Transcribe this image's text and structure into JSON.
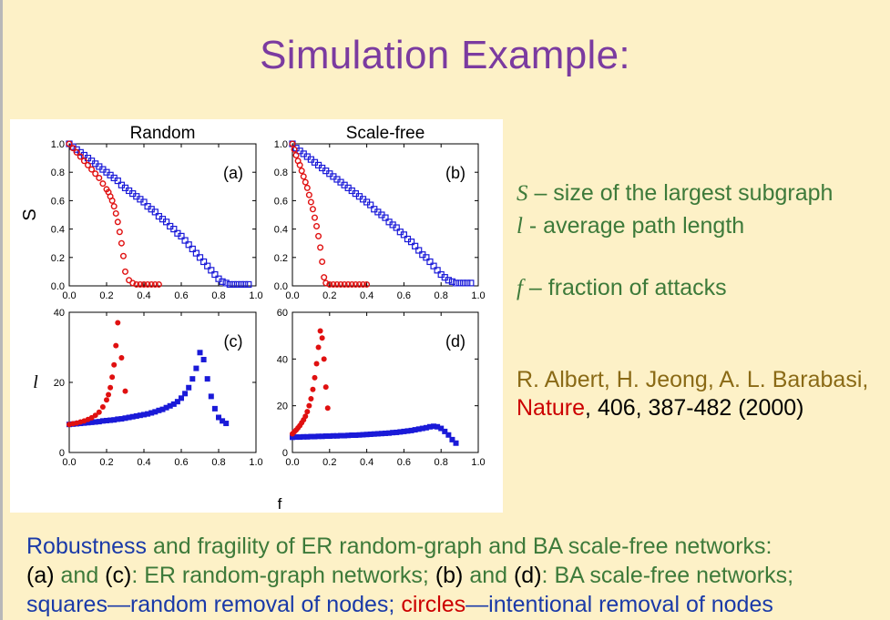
{
  "slide": {
    "title": "Simulation Example:"
  },
  "legend": [
    {
      "symbol": "S",
      "text": " – size of the largest subgraph"
    },
    {
      "symbol": "l",
      "text": " -  average path length"
    },
    {
      "symbol": "f",
      "text": " – fraction of attacks"
    }
  ],
  "reference": {
    "authors": "R. Albert, H. Jeong, A. L. Barabasi,",
    "journal": "Nature",
    "details": ", 406, 387-482 (2000)"
  },
  "caption": {
    "line1": {
      "a": "Robustness",
      "b": " and fragility of ER random-graph and BA scale-free networks:"
    },
    "line2": {
      "a": "(a)",
      "b": " and ",
      "c": "(c)",
      "d": ": ER random-graph networks; ",
      "e": "(b)",
      "f": " and ",
      "g": "(d)",
      "h": ": BA scale-free networks;"
    },
    "line3": {
      "a": "squares—random removal of nodes; ",
      "b": "circles",
      "c": "—intentional removal of nodes"
    }
  },
  "colors": {
    "squares": "#1a1ad8",
    "circles": "#e01010"
  },
  "chart_data": [
    {
      "type": "scatter",
      "panel": "(a)",
      "column_title": "Random",
      "ylabel": "S",
      "xlim": [
        0,
        1.0
      ],
      "ylim": [
        0,
        1.0
      ],
      "xticks": [
        "0.0",
        "0.2",
        "0.4",
        "0.6",
        "0.8",
        "1.0"
      ],
      "yticks": [
        "0.0",
        "0.2",
        "0.4",
        "0.6",
        "0.8",
        "1.0"
      ],
      "series": [
        {
          "marker": "open-square",
          "x": [
            0,
            0.02,
            0.04,
            0.06,
            0.08,
            0.1,
            0.12,
            0.14,
            0.16,
            0.18,
            0.2,
            0.22,
            0.24,
            0.26,
            0.28,
            0.3,
            0.32,
            0.34,
            0.36,
            0.38,
            0.4,
            0.42,
            0.44,
            0.46,
            0.48,
            0.5,
            0.52,
            0.54,
            0.56,
            0.58,
            0.6,
            0.62,
            0.64,
            0.66,
            0.68,
            0.7,
            0.72,
            0.74,
            0.76,
            0.78,
            0.8,
            0.82,
            0.84,
            0.86,
            0.88,
            0.9,
            0.92,
            0.94,
            0.96
          ],
          "y": [
            1.0,
            0.98,
            0.96,
            0.94,
            0.92,
            0.9,
            0.88,
            0.86,
            0.84,
            0.82,
            0.8,
            0.78,
            0.76,
            0.74,
            0.71,
            0.69,
            0.67,
            0.65,
            0.63,
            0.61,
            0.59,
            0.56,
            0.54,
            0.52,
            0.49,
            0.47,
            0.45,
            0.42,
            0.4,
            0.37,
            0.35,
            0.32,
            0.29,
            0.26,
            0.23,
            0.2,
            0.17,
            0.14,
            0.11,
            0.08,
            0.05,
            0.03,
            0.02,
            0.01,
            0.01,
            0.01,
            0.01,
            0.01,
            0.01
          ]
        },
        {
          "marker": "open-circle",
          "x": [
            0,
            0.02,
            0.04,
            0.06,
            0.08,
            0.1,
            0.12,
            0.14,
            0.16,
            0.18,
            0.2,
            0.21,
            0.22,
            0.23,
            0.24,
            0.25,
            0.26,
            0.27,
            0.28,
            0.29,
            0.3,
            0.32,
            0.34,
            0.36,
            0.38,
            0.4,
            0.42,
            0.44,
            0.46,
            0.48
          ],
          "y": [
            1.0,
            0.97,
            0.94,
            0.91,
            0.88,
            0.85,
            0.82,
            0.79,
            0.76,
            0.72,
            0.68,
            0.66,
            0.63,
            0.6,
            0.56,
            0.51,
            0.45,
            0.38,
            0.3,
            0.21,
            0.1,
            0.04,
            0.02,
            0.01,
            0.01,
            0.01,
            0.01,
            0.01,
            0.01,
            0.01
          ]
        }
      ]
    },
    {
      "type": "scatter",
      "panel": "(b)",
      "column_title": "Scale-free",
      "xlim": [
        0,
        1.0
      ],
      "ylim": [
        0,
        1.0
      ],
      "xticks": [
        "0.0",
        "0.2",
        "0.4",
        "0.6",
        "0.8",
        "1.0"
      ],
      "yticks": [
        "0.0",
        "0.2",
        "0.4",
        "0.6",
        "0.8",
        "1.0"
      ],
      "series": [
        {
          "marker": "open-square",
          "x": [
            0,
            0.02,
            0.04,
            0.06,
            0.08,
            0.1,
            0.12,
            0.14,
            0.16,
            0.18,
            0.2,
            0.22,
            0.24,
            0.26,
            0.28,
            0.3,
            0.32,
            0.34,
            0.36,
            0.38,
            0.4,
            0.42,
            0.44,
            0.46,
            0.48,
            0.5,
            0.52,
            0.54,
            0.56,
            0.58,
            0.6,
            0.62,
            0.64,
            0.66,
            0.68,
            0.7,
            0.72,
            0.74,
            0.76,
            0.78,
            0.8,
            0.82,
            0.84,
            0.86,
            0.88,
            0.9,
            0.92,
            0.94,
            0.96
          ],
          "y": [
            1.0,
            0.97,
            0.95,
            0.93,
            0.91,
            0.89,
            0.87,
            0.85,
            0.83,
            0.81,
            0.79,
            0.77,
            0.75,
            0.73,
            0.71,
            0.69,
            0.67,
            0.65,
            0.63,
            0.61,
            0.59,
            0.57,
            0.54,
            0.52,
            0.5,
            0.48,
            0.45,
            0.43,
            0.41,
            0.38,
            0.36,
            0.33,
            0.31,
            0.28,
            0.25,
            0.22,
            0.2,
            0.17,
            0.14,
            0.11,
            0.08,
            0.06,
            0.04,
            0.03,
            0.02,
            0.02,
            0.02,
            0.02,
            0.02
          ]
        },
        {
          "marker": "open-circle",
          "x": [
            0,
            0.01,
            0.02,
            0.03,
            0.04,
            0.05,
            0.06,
            0.07,
            0.08,
            0.09,
            0.1,
            0.11,
            0.12,
            0.13,
            0.14,
            0.15,
            0.16,
            0.17,
            0.18,
            0.2,
            0.22,
            0.24,
            0.26,
            0.28,
            0.3,
            0.32,
            0.34,
            0.36,
            0.38,
            0.4
          ],
          "y": [
            1.0,
            0.96,
            0.92,
            0.88,
            0.85,
            0.81,
            0.77,
            0.73,
            0.69,
            0.64,
            0.59,
            0.54,
            0.48,
            0.42,
            0.35,
            0.27,
            0.17,
            0.06,
            0.02,
            0.01,
            0.01,
            0.01,
            0.01,
            0.01,
            0.01,
            0.01,
            0.01,
            0.01,
            0.01,
            0.01
          ]
        }
      ]
    },
    {
      "type": "scatter",
      "panel": "(c)",
      "ylabel": "l",
      "xlim": [
        0,
        1.0
      ],
      "ylim": [
        0,
        40
      ],
      "xticks": [
        "0.0",
        "0.2",
        "0.4",
        "0.6",
        "0.8",
        "1.0"
      ],
      "yticks": [
        "0",
        "20",
        "40"
      ],
      "series": [
        {
          "marker": "filled-square",
          "x": [
            0,
            0.02,
            0.04,
            0.06,
            0.08,
            0.1,
            0.12,
            0.14,
            0.16,
            0.18,
            0.2,
            0.22,
            0.24,
            0.26,
            0.28,
            0.3,
            0.32,
            0.34,
            0.36,
            0.38,
            0.4,
            0.42,
            0.44,
            0.46,
            0.48,
            0.5,
            0.52,
            0.54,
            0.56,
            0.58,
            0.6,
            0.62,
            0.64,
            0.66,
            0.68,
            0.7,
            0.72,
            0.74,
            0.76,
            0.78,
            0.8,
            0.82,
            0.84
          ],
          "y": [
            8,
            8.1,
            8.2,
            8.3,
            8.4,
            8.5,
            8.6,
            8.7,
            8.8,
            9,
            9.1,
            9.2,
            9.3,
            9.5,
            9.6,
            9.8,
            10,
            10.2,
            10.4,
            10.6,
            10.8,
            11,
            11.3,
            11.6,
            12,
            12.3,
            12.8,
            13.3,
            13.8,
            14.5,
            15.5,
            16.8,
            18.5,
            21,
            24,
            28.5,
            26.5,
            21,
            16,
            12.5,
            10,
            9,
            8.3
          ]
        },
        {
          "marker": "filled-circle",
          "x": [
            0,
            0.02,
            0.04,
            0.06,
            0.08,
            0.1,
            0.12,
            0.14,
            0.16,
            0.18,
            0.2,
            0.21,
            0.22,
            0.23,
            0.24,
            0.25,
            0.26,
            0.28,
            0.3
          ],
          "y": [
            8,
            8.2,
            8.4,
            8.7,
            9,
            9.4,
            9.9,
            10.6,
            11.5,
            13,
            15,
            16.5,
            18.5,
            21.5,
            25,
            30.5,
            37,
            27,
            17.5
          ]
        }
      ]
    },
    {
      "type": "scatter",
      "panel": "(d)",
      "xlim": [
        0,
        1.0
      ],
      "ylim": [
        0,
        60
      ],
      "xticks": [
        "0.0",
        "0.2",
        "0.4",
        "0.6",
        "0.8",
        "1.0"
      ],
      "yticks": [
        "0",
        "20",
        "40",
        "60"
      ],
      "series": [
        {
          "marker": "filled-square",
          "x": [
            0,
            0.02,
            0.04,
            0.06,
            0.08,
            0.1,
            0.12,
            0.14,
            0.16,
            0.18,
            0.2,
            0.22,
            0.24,
            0.26,
            0.28,
            0.3,
            0.32,
            0.34,
            0.36,
            0.38,
            0.4,
            0.42,
            0.44,
            0.46,
            0.48,
            0.5,
            0.52,
            0.54,
            0.56,
            0.58,
            0.6,
            0.62,
            0.64,
            0.66,
            0.68,
            0.7,
            0.72,
            0.74,
            0.76,
            0.78,
            0.8,
            0.82,
            0.84,
            0.86,
            0.88
          ],
          "y": [
            6.5,
            6.6,
            6.6,
            6.7,
            6.7,
            6.8,
            6.8,
            6.9,
            6.9,
            7,
            7,
            7.1,
            7.1,
            7.2,
            7.2,
            7.3,
            7.4,
            7.4,
            7.5,
            7.6,
            7.7,
            7.8,
            7.9,
            8,
            8.1,
            8.2,
            8.3,
            8.5,
            8.6,
            8.8,
            9,
            9.2,
            9.4,
            9.7,
            10,
            10.3,
            10.6,
            11,
            11.2,
            11,
            10.3,
            9,
            7.5,
            5.5,
            4
          ]
        },
        {
          "marker": "filled-circle",
          "x": [
            0,
            0.01,
            0.02,
            0.03,
            0.04,
            0.05,
            0.06,
            0.07,
            0.08,
            0.09,
            0.1,
            0.11,
            0.12,
            0.13,
            0.14,
            0.15,
            0.16,
            0.17,
            0.18,
            0.19
          ],
          "y": [
            8,
            8.8,
            9.6,
            10.5,
            11.5,
            12.7,
            14,
            15.5,
            17.5,
            20,
            23,
            27,
            32,
            38,
            45,
            52,
            49,
            40,
            28,
            19
          ]
        }
      ]
    }
  ],
  "shared_xlabel": "f"
}
